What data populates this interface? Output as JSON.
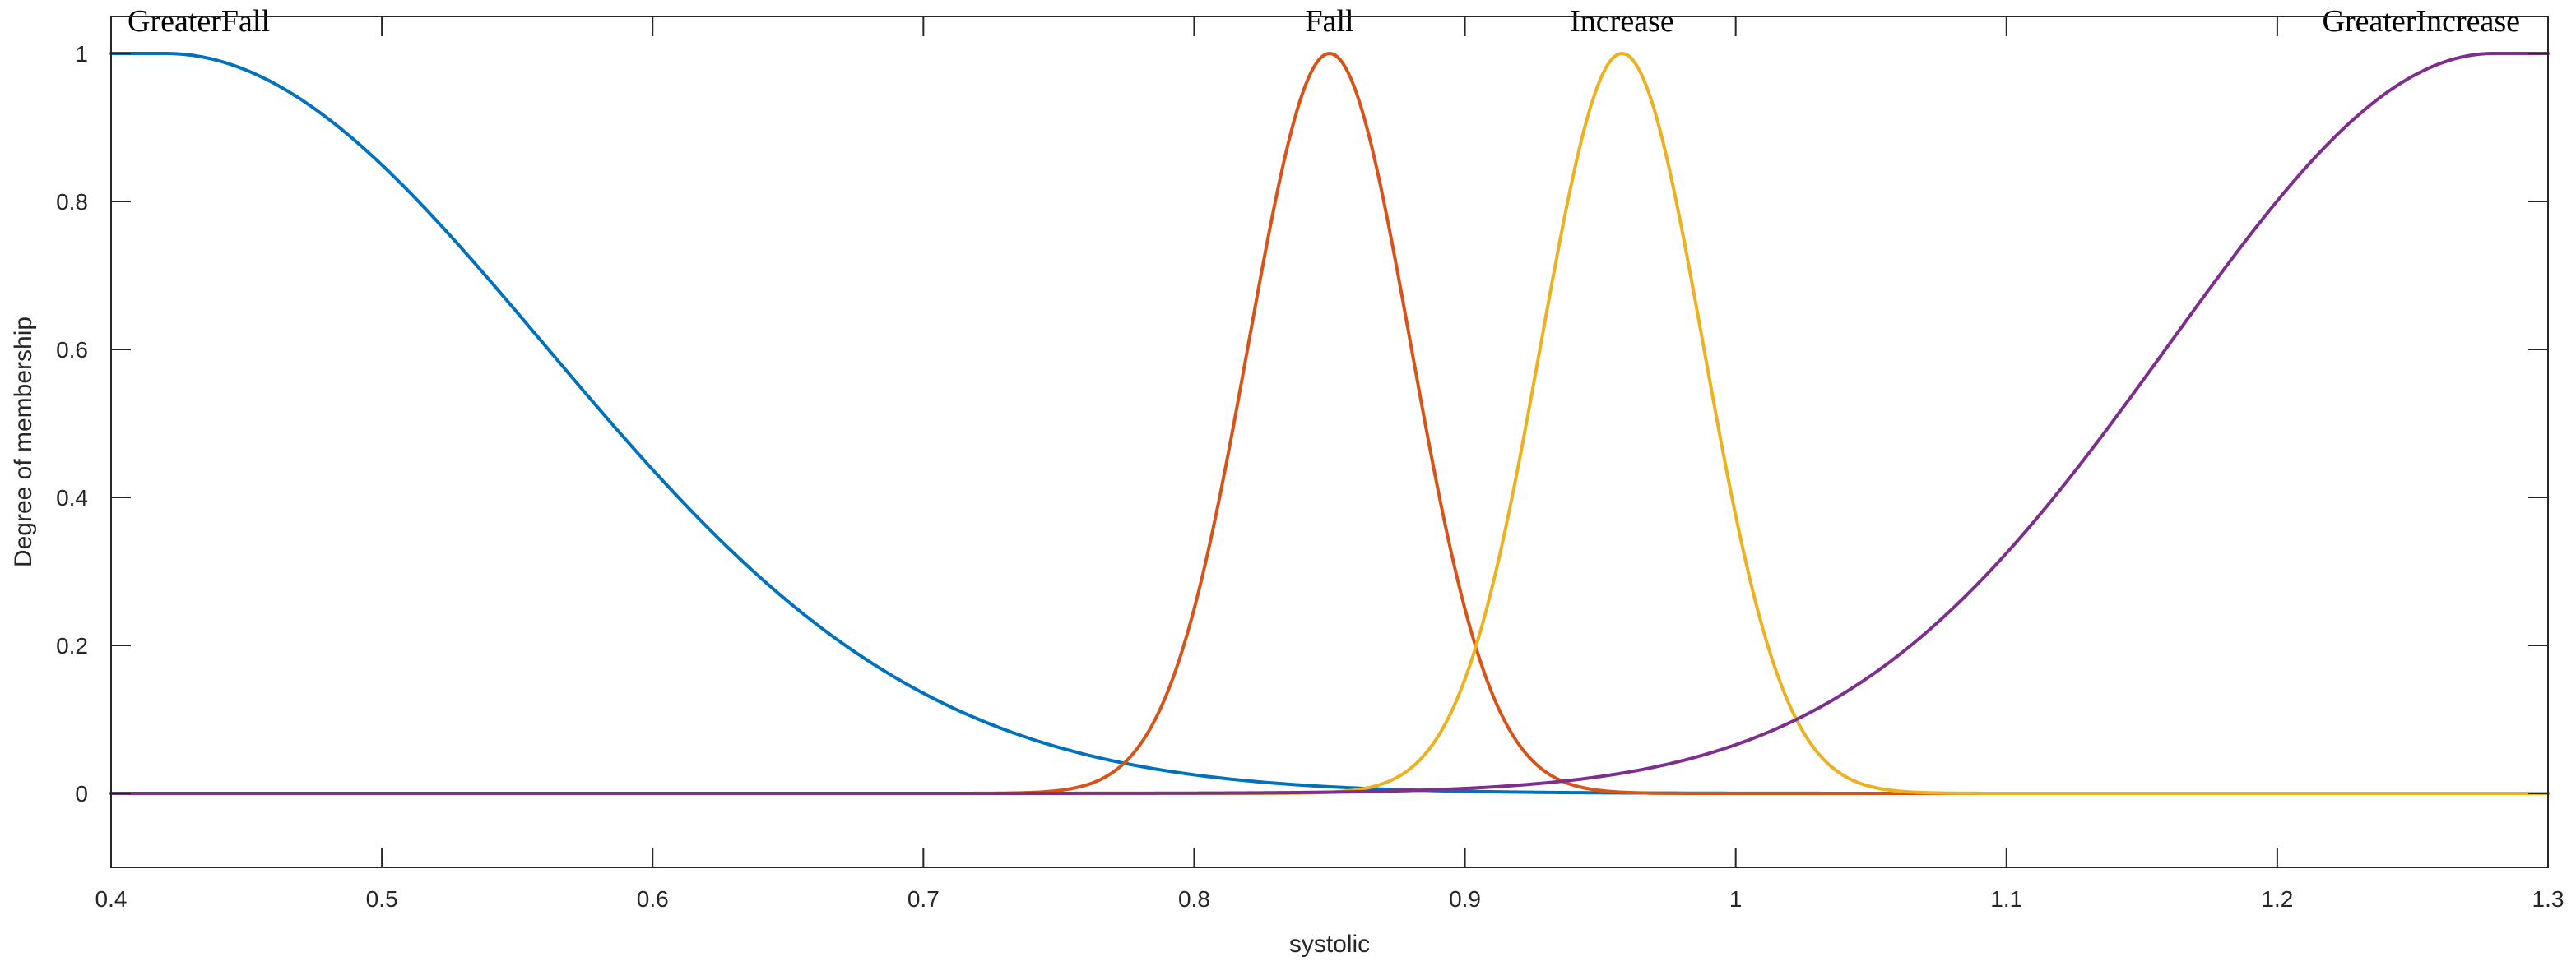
{
  "chart_data": {
    "type": "line",
    "title": "",
    "xlabel": "systolic",
    "ylabel": "Degree of membership",
    "xlim": [
      0.4,
      1.3
    ],
    "ylim": [
      -0.1,
      1.05
    ],
    "x_ticks": [
      0.4,
      0.5,
      0.6,
      0.7,
      0.8,
      0.9,
      1.0,
      1.1,
      1.2,
      1.3
    ],
    "x_tick_labels": [
      "0.4",
      "0.5",
      "0.6",
      "0.7",
      "0.8",
      "0.9",
      "1",
      "1.1",
      "1.2",
      "1.3"
    ],
    "y_ticks": [
      0,
      0.2,
      0.4,
      0.6,
      0.8,
      1
    ],
    "y_tick_labels": [
      "0",
      "0.2",
      "0.4",
      "0.6",
      "0.8",
      "1"
    ],
    "grid": false,
    "legend": "none",
    "series": [
      {
        "name": "GreaterFall",
        "color": "#0072BD",
        "shape": "left-shoulder-gaussian",
        "plateau_until": 0.42,
        "sigma": 0.14,
        "label_at": [
          0.43,
          1.03
        ]
      },
      {
        "name": "Fall",
        "color": "#D95319",
        "shape": "gaussian",
        "mean": 0.85,
        "sigma": 0.03,
        "label_at": [
          0.85,
          1.03
        ]
      },
      {
        "name": "Increase",
        "color": "#EDB120",
        "shape": "gaussian",
        "mean": 0.958,
        "sigma": 0.03,
        "label_at": [
          0.958,
          1.03
        ]
      },
      {
        "name": "GreaterIncrease",
        "color": "#7E2F8E",
        "shape": "right-shoulder-gaussian",
        "plateau_from": 1.28,
        "sigma": 0.12,
        "label_at": [
          1.245,
          1.03
        ]
      }
    ]
  }
}
